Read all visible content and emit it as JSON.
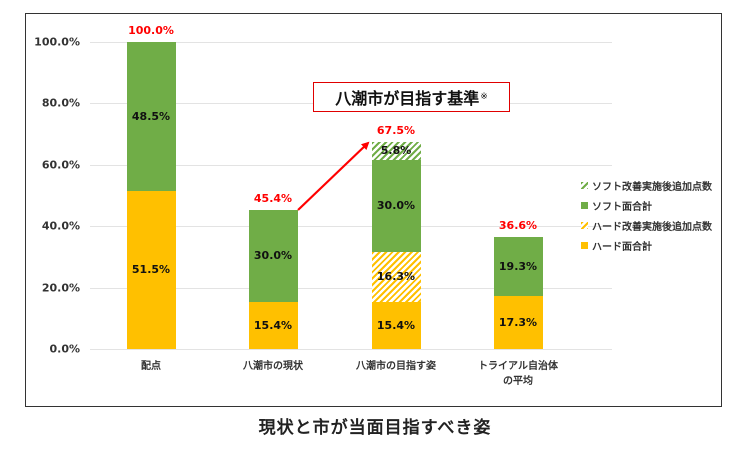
{
  "chart_data": {
    "type": "bar",
    "stacked": true,
    "title": "現状と市が当面目指すべき姿",
    "xlabel": "",
    "ylabel": "",
    "ylim": [
      0,
      100
    ],
    "yticks": [
      "0.0%",
      "20.0%",
      "40.0%",
      "60.0%",
      "80.0%",
      "100.0%"
    ],
    "grid": true,
    "legend_position": "right",
    "categories": [
      "配点",
      "八潮市の現状",
      "八潮市の目指す姿",
      "トライアル自治体の平均"
    ],
    "category_labels_display": [
      [
        "配点"
      ],
      [
        "八潮市の現状"
      ],
      [
        "八潮市の目指す姿"
      ],
      [
        "トライアル自治体",
        "の平均"
      ]
    ],
    "series": [
      {
        "name": "ハード面合計",
        "color": "#FFC000",
        "pattern": "solid",
        "values": [
          51.5,
          15.4,
          15.4,
          17.3
        ],
        "labels": [
          "51.5%",
          "15.4%",
          "15.4%",
          "17.3%"
        ]
      },
      {
        "name": "ハード改善実施後追加点数",
        "color": "#FFC000",
        "pattern": "hatched",
        "values": [
          0,
          0,
          16.3,
          0
        ],
        "labels": [
          "",
          "",
          "16.3%",
          ""
        ]
      },
      {
        "name": "ソフト面合計",
        "color": "#70AD47",
        "pattern": "solid",
        "values": [
          48.5,
          30.0,
          30.0,
          19.3
        ],
        "labels": [
          "48.5%",
          "30.0%",
          "30.0%",
          "19.3%"
        ]
      },
      {
        "name": "ソフト改善実施後追加点数",
        "color": "#70AD47",
        "pattern": "hatched",
        "values": [
          0,
          0,
          5.8,
          0
        ],
        "labels": [
          "",
          "",
          "5.8%",
          ""
        ]
      }
    ],
    "totals": [
      100.0,
      45.4,
      67.5,
      36.6
    ],
    "total_labels": [
      "100.0%",
      "45.4%",
      "67.5%",
      "36.6%"
    ],
    "total_label_color": "#FF0000",
    "annotations": [
      {
        "type": "callout",
        "text": "八潮市が目指す基準",
        "suffix": "※",
        "border_color": "#E00000"
      },
      {
        "type": "arrow",
        "from": "八潮市の現状",
        "to": "八潮市の目指す姿",
        "color": "#FF0000"
      }
    ]
  },
  "legend": {
    "items": [
      {
        "label": "ソフト改善実施後追加点数"
      },
      {
        "label": "ソフト面合計"
      },
      {
        "label": "ハード改善実施後追加点数"
      },
      {
        "label": "ハード面合計"
      }
    ]
  },
  "callout": {
    "text": "八潮市が目指す基準",
    "suffix": "※"
  },
  "caption": "現状と市が当面目指すべき姿"
}
